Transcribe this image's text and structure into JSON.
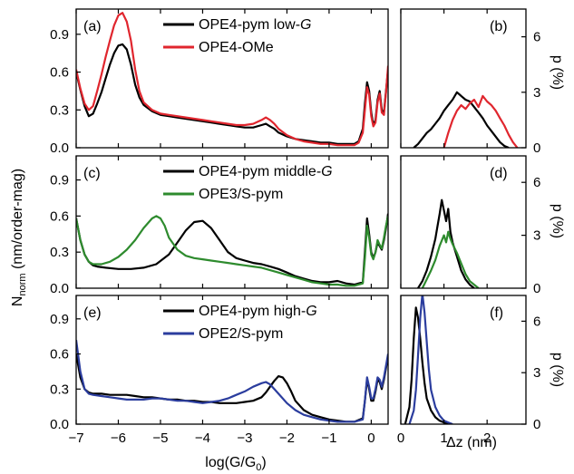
{
  "figure": {
    "ylabel_left_main": "N",
    "ylabel_left_sub": "norm",
    "ylabel_left_rest": " (nm/order-mag)",
    "xlabel_left_main": "log(G/G",
    "xlabel_left_sub": "0",
    "xlabel_left_end": ")",
    "xlabel_right": "Δz (nm)",
    "ylabel_right": "p (%)"
  },
  "chart_data": [
    {
      "id": "a",
      "panel_label": "(a)",
      "type": "line",
      "xlim": [
        -7,
        0.4
      ],
      "ylim": [
        0,
        1.1
      ],
      "xticks": [
        -7,
        -6,
        -5,
        -4,
        -3,
        -2,
        -1,
        0
      ],
      "yticks": [
        0.0,
        0.3,
        0.6,
        0.9
      ],
      "ytick_labels": [
        "0.0",
        "0.3",
        "0.6",
        "0.9"
      ],
      "legend_position": "top-right",
      "series": [
        {
          "legend_main": "OPE4-pym low-",
          "legend_italic": "G",
          "color": "#000000",
          "x": [
            -7.0,
            -6.9,
            -6.8,
            -6.7,
            -6.6,
            -6.5,
            -6.4,
            -6.3,
            -6.2,
            -6.1,
            -6.0,
            -5.9,
            -5.8,
            -5.7,
            -5.6,
            -5.5,
            -5.4,
            -5.2,
            -5.0,
            -4.8,
            -4.6,
            -4.4,
            -4.2,
            -4.0,
            -3.8,
            -3.6,
            -3.4,
            -3.2,
            -3.0,
            -2.8,
            -2.6,
            -2.5,
            -2.4,
            -2.3,
            -2.2,
            -2.0,
            -1.8,
            -1.6,
            -1.4,
            -1.2,
            -1.0,
            -0.8,
            -0.6,
            -0.4,
            -0.3,
            -0.2,
            -0.15,
            -0.1,
            -0.05,
            0.0,
            0.05,
            0.1,
            0.15,
            0.2,
            0.25,
            0.3,
            0.35,
            0.4
          ],
          "y": [
            0.6,
            0.46,
            0.33,
            0.25,
            0.27,
            0.35,
            0.44,
            0.55,
            0.66,
            0.75,
            0.81,
            0.82,
            0.78,
            0.66,
            0.5,
            0.4,
            0.34,
            0.29,
            0.26,
            0.25,
            0.24,
            0.23,
            0.22,
            0.21,
            0.2,
            0.19,
            0.18,
            0.17,
            0.16,
            0.16,
            0.18,
            0.19,
            0.17,
            0.15,
            0.12,
            0.09,
            0.07,
            0.06,
            0.05,
            0.04,
            0.04,
            0.03,
            0.03,
            0.03,
            0.05,
            0.15,
            0.35,
            0.52,
            0.45,
            0.28,
            0.18,
            0.22,
            0.38,
            0.45,
            0.3,
            0.28,
            0.45,
            0.62
          ]
        },
        {
          "legend_main": "OPE4-OMe",
          "legend_italic": "",
          "color": "#e0262e",
          "x": [
            -7.0,
            -6.9,
            -6.8,
            -6.7,
            -6.6,
            -6.5,
            -6.4,
            -6.3,
            -6.2,
            -6.1,
            -6.0,
            -5.9,
            -5.8,
            -5.7,
            -5.6,
            -5.5,
            -5.4,
            -5.2,
            -5.0,
            -4.8,
            -4.6,
            -4.4,
            -4.2,
            -4.0,
            -3.8,
            -3.6,
            -3.4,
            -3.2,
            -3.0,
            -2.8,
            -2.6,
            -2.5,
            -2.4,
            -2.3,
            -2.2,
            -2.0,
            -1.8,
            -1.6,
            -1.4,
            -1.2,
            -1.0,
            -0.8,
            -0.6,
            -0.4,
            -0.3,
            -0.2,
            -0.15,
            -0.1,
            -0.05,
            0.0,
            0.05,
            0.1,
            0.15,
            0.2,
            0.25,
            0.3,
            0.35,
            0.4
          ],
          "y": [
            0.62,
            0.47,
            0.35,
            0.3,
            0.33,
            0.45,
            0.58,
            0.72,
            0.85,
            0.97,
            1.05,
            1.07,
            1.0,
            0.85,
            0.62,
            0.45,
            0.36,
            0.3,
            0.27,
            0.26,
            0.25,
            0.24,
            0.23,
            0.22,
            0.21,
            0.2,
            0.19,
            0.18,
            0.18,
            0.19,
            0.22,
            0.24,
            0.22,
            0.19,
            0.15,
            0.1,
            0.07,
            0.05,
            0.04,
            0.03,
            0.03,
            0.02,
            0.02,
            0.02,
            0.04,
            0.12,
            0.3,
            0.48,
            0.42,
            0.25,
            0.17,
            0.2,
            0.36,
            0.43,
            0.28,
            0.26,
            0.44,
            0.65
          ]
        }
      ]
    },
    {
      "id": "b",
      "panel_label": "(b)",
      "type": "line",
      "xlim": [
        0,
        2.9
      ],
      "ylim": [
        0,
        7.5
      ],
      "xticks": [
        0,
        1,
        2
      ],
      "yticks": [
        0,
        3,
        6
      ],
      "ytick_labels": [
        "0",
        "3",
        "6"
      ],
      "series": [
        {
          "name": "",
          "color": "#000000",
          "x": [
            0.3,
            0.4,
            0.5,
            0.6,
            0.7,
            0.8,
            0.9,
            1.0,
            1.1,
            1.2,
            1.3,
            1.4,
            1.5,
            1.6,
            1.7,
            1.8,
            1.9,
            2.0,
            2.1,
            2.2,
            2.3,
            2.4,
            2.5
          ],
          "y": [
            0.0,
            0.2,
            0.5,
            0.8,
            1.0,
            1.3,
            1.6,
            2.0,
            2.3,
            2.6,
            3.0,
            2.8,
            2.6,
            2.5,
            2.2,
            1.9,
            1.6,
            1.2,
            0.9,
            0.6,
            0.3,
            0.1,
            0.0
          ]
        },
        {
          "name": "",
          "color": "#e0262e",
          "x": [
            1.0,
            1.1,
            1.2,
            1.3,
            1.4,
            1.5,
            1.6,
            1.7,
            1.8,
            1.9,
            2.0,
            2.1,
            2.2,
            2.3,
            2.4,
            2.5,
            2.6,
            2.7
          ],
          "y": [
            0.0,
            0.8,
            1.5,
            2.0,
            2.3,
            2.1,
            2.4,
            2.6,
            2.2,
            2.8,
            2.5,
            2.3,
            2.0,
            1.6,
            1.2,
            0.7,
            0.3,
            0.0
          ]
        }
      ]
    },
    {
      "id": "c",
      "panel_label": "(c)",
      "type": "line",
      "xlim": [
        -7,
        0.4
      ],
      "ylim": [
        0,
        1.1
      ],
      "xticks": [
        -7,
        -6,
        -5,
        -4,
        -3,
        -2,
        -1,
        0
      ],
      "yticks": [
        0.0,
        0.3,
        0.6,
        0.9
      ],
      "ytick_labels": [
        "0.0",
        "0.3",
        "0.6",
        "0.9"
      ],
      "legend_position": "top-right",
      "series": [
        {
          "legend_main": "OPE4-pym middle-",
          "legend_italic": "G",
          "color": "#000000",
          "x": [
            -7.0,
            -6.9,
            -6.8,
            -6.7,
            -6.6,
            -6.5,
            -6.3,
            -6.0,
            -5.7,
            -5.4,
            -5.1,
            -4.8,
            -4.6,
            -4.4,
            -4.2,
            -4.0,
            -3.8,
            -3.6,
            -3.4,
            -3.2,
            -3.0,
            -2.8,
            -2.6,
            -2.4,
            -2.2,
            -2.0,
            -1.8,
            -1.6,
            -1.4,
            -1.2,
            -1.0,
            -0.8,
            -0.6,
            -0.4,
            -0.2,
            -0.15,
            -0.1,
            -0.05,
            0.0,
            0.05,
            0.1,
            0.15,
            0.2,
            0.25,
            0.3,
            0.35,
            0.4
          ],
          "y": [
            0.58,
            0.4,
            0.28,
            0.22,
            0.19,
            0.18,
            0.17,
            0.16,
            0.16,
            0.17,
            0.2,
            0.28,
            0.38,
            0.48,
            0.55,
            0.56,
            0.5,
            0.4,
            0.3,
            0.25,
            0.23,
            0.21,
            0.2,
            0.18,
            0.16,
            0.13,
            0.1,
            0.08,
            0.06,
            0.05,
            0.05,
            0.06,
            0.04,
            0.03,
            0.05,
            0.3,
            0.58,
            0.45,
            0.3,
            0.25,
            0.3,
            0.38,
            0.35,
            0.32,
            0.4,
            0.5,
            0.62
          ]
        },
        {
          "legend_main": "OPE3/S-pym",
          "legend_italic": "",
          "color": "#2e8b2e",
          "x": [
            -7.0,
            -6.9,
            -6.8,
            -6.7,
            -6.6,
            -6.4,
            -6.2,
            -6.0,
            -5.8,
            -5.6,
            -5.4,
            -5.2,
            -5.1,
            -5.0,
            -4.9,
            -4.8,
            -4.6,
            -4.4,
            -4.2,
            -4.0,
            -3.8,
            -3.6,
            -3.4,
            -3.2,
            -3.0,
            -2.8,
            -2.6,
            -2.4,
            -2.2,
            -2.0,
            -1.8,
            -1.6,
            -1.4,
            -1.2,
            -1.0,
            -0.8,
            -0.6,
            -0.4,
            -0.2,
            -0.15,
            -0.1,
            -0.05,
            0.0,
            0.05,
            0.1,
            0.15,
            0.2,
            0.25,
            0.3,
            0.35,
            0.4
          ],
          "y": [
            0.58,
            0.4,
            0.28,
            0.22,
            0.2,
            0.2,
            0.22,
            0.26,
            0.32,
            0.4,
            0.5,
            0.58,
            0.6,
            0.58,
            0.52,
            0.42,
            0.32,
            0.27,
            0.25,
            0.24,
            0.23,
            0.22,
            0.21,
            0.2,
            0.19,
            0.18,
            0.17,
            0.15,
            0.13,
            0.11,
            0.09,
            0.07,
            0.05,
            0.04,
            0.03,
            0.03,
            0.02,
            0.02,
            0.04,
            0.25,
            0.52,
            0.42,
            0.28,
            0.24,
            0.3,
            0.4,
            0.36,
            0.33,
            0.42,
            0.52,
            0.6
          ]
        }
      ]
    },
    {
      "id": "d",
      "panel_label": "(d)",
      "type": "line",
      "xlim": [
        0,
        2.9
      ],
      "ylim": [
        0,
        7.5
      ],
      "xticks": [
        0,
        1,
        2
      ],
      "yticks": [
        0,
        3,
        6
      ],
      "ytick_labels": [
        "0",
        "3",
        "6"
      ],
      "series": [
        {
          "name": "",
          "color": "#000000",
          "x": [
            0.4,
            0.5,
            0.6,
            0.7,
            0.8,
            0.85,
            0.9,
            0.95,
            1.0,
            1.05,
            1.1,
            1.15,
            1.2,
            1.3,
            1.4,
            1.5,
            1.6,
            1.7
          ],
          "y": [
            0.0,
            0.4,
            1.0,
            1.8,
            2.8,
            3.5,
            4.2,
            5.0,
            4.4,
            3.8,
            4.5,
            3.2,
            2.6,
            1.8,
            1.0,
            0.5,
            0.2,
            0.0
          ]
        },
        {
          "name": "",
          "color": "#2e8b2e",
          "x": [
            0.5,
            0.6,
            0.7,
            0.8,
            0.9,
            1.0,
            1.05,
            1.1,
            1.15,
            1.2,
            1.3,
            1.4,
            1.5,
            1.6,
            1.7,
            1.8
          ],
          "y": [
            0.0,
            0.5,
            1.0,
            1.6,
            2.4,
            3.0,
            2.6,
            3.2,
            2.8,
            2.5,
            2.0,
            1.4,
            0.8,
            0.4,
            0.2,
            0.0
          ]
        }
      ]
    },
    {
      "id": "e",
      "panel_label": "(e)",
      "type": "line",
      "xlim": [
        -7,
        0.4
      ],
      "ylim": [
        0,
        1.1
      ],
      "xticks": [
        -7,
        -6,
        -5,
        -4,
        -3,
        -2,
        -1,
        0
      ],
      "yticks": [
        0.0,
        0.3,
        0.6,
        0.9
      ],
      "ytick_labels": [
        "0.0",
        "0.3",
        "0.6",
        "0.9"
      ],
      "legend_position": "top-right",
      "series": [
        {
          "legend_main": "OPE4-pym high-",
          "legend_italic": "G",
          "color": "#000000",
          "x": [
            -7.0,
            -6.9,
            -6.8,
            -6.7,
            -6.6,
            -6.4,
            -6.2,
            -6.0,
            -5.8,
            -5.6,
            -5.4,
            -5.2,
            -5.0,
            -4.8,
            -4.6,
            -4.4,
            -4.2,
            -4.0,
            -3.8,
            -3.6,
            -3.4,
            -3.2,
            -3.0,
            -2.8,
            -2.6,
            -2.5,
            -2.4,
            -2.3,
            -2.2,
            -2.1,
            -2.0,
            -1.9,
            -1.8,
            -1.6,
            -1.4,
            -1.2,
            -1.0,
            -0.8,
            -0.6,
            -0.4,
            -0.2,
            -0.15,
            -0.1,
            -0.05,
            0.0,
            0.05,
            0.1,
            0.15,
            0.2,
            0.25,
            0.3,
            0.35,
            0.4
          ],
          "y": [
            0.6,
            0.4,
            0.3,
            0.27,
            0.26,
            0.26,
            0.25,
            0.25,
            0.25,
            0.24,
            0.23,
            0.23,
            0.22,
            0.21,
            0.21,
            0.2,
            0.2,
            0.19,
            0.19,
            0.18,
            0.18,
            0.18,
            0.19,
            0.2,
            0.23,
            0.27,
            0.32,
            0.37,
            0.41,
            0.4,
            0.35,
            0.28,
            0.2,
            0.12,
            0.08,
            0.06,
            0.04,
            0.03,
            0.02,
            0.02,
            0.05,
            0.2,
            0.38,
            0.3,
            0.2,
            0.2,
            0.28,
            0.38,
            0.36,
            0.3,
            0.38,
            0.48,
            0.58
          ]
        },
        {
          "legend_main": "OPE2/S-pym",
          "legend_italic": "",
          "color": "#2b3d9e",
          "x": [
            -7.0,
            -6.9,
            -6.8,
            -6.7,
            -6.6,
            -6.4,
            -6.2,
            -6.0,
            -5.8,
            -5.6,
            -5.4,
            -5.2,
            -5.0,
            -4.8,
            -4.6,
            -4.4,
            -4.2,
            -4.0,
            -3.8,
            -3.6,
            -3.4,
            -3.2,
            -3.0,
            -2.8,
            -2.6,
            -2.5,
            -2.4,
            -2.3,
            -2.2,
            -2.1,
            -2.0,
            -1.8,
            -1.6,
            -1.4,
            -1.2,
            -1.0,
            -0.8,
            -0.6,
            -0.4,
            -0.2,
            -0.15,
            -0.1,
            -0.05,
            0.0,
            0.05,
            0.1,
            0.15,
            0.2,
            0.25,
            0.3,
            0.35,
            0.4
          ],
          "y": [
            0.72,
            0.45,
            0.3,
            0.26,
            0.25,
            0.24,
            0.23,
            0.22,
            0.21,
            0.21,
            0.21,
            0.22,
            0.22,
            0.21,
            0.2,
            0.2,
            0.19,
            0.18,
            0.19,
            0.2,
            0.22,
            0.25,
            0.28,
            0.32,
            0.35,
            0.36,
            0.34,
            0.3,
            0.26,
            0.22,
            0.18,
            0.12,
            0.08,
            0.06,
            0.04,
            0.03,
            0.02,
            0.02,
            0.02,
            0.04,
            0.2,
            0.4,
            0.32,
            0.22,
            0.22,
            0.3,
            0.4,
            0.38,
            0.32,
            0.4,
            0.5,
            0.6
          ]
        }
      ]
    },
    {
      "id": "f",
      "panel_label": "(f)",
      "type": "line",
      "xlim": [
        0,
        2.9
      ],
      "ylim": [
        0,
        7.5
      ],
      "xticks": [
        0,
        1,
        2
      ],
      "yticks": [
        0,
        3,
        6
      ],
      "ytick_labels": [
        "0",
        "3",
        "6"
      ],
      "series": [
        {
          "name": "",
          "color": "#000000",
          "x": [
            0.1,
            0.2,
            0.25,
            0.3,
            0.35,
            0.4,
            0.45,
            0.5,
            0.55,
            0.6,
            0.7,
            0.8,
            0.9,
            1.0,
            1.1
          ],
          "y": [
            0.0,
            1.0,
            2.6,
            5.0,
            6.8,
            6.2,
            5.0,
            3.6,
            2.4,
            1.5,
            0.8,
            0.4,
            0.2,
            0.1,
            0.0
          ]
        },
        {
          "name": "",
          "color": "#2b3d9e",
          "x": [
            0.2,
            0.3,
            0.35,
            0.4,
            0.45,
            0.5,
            0.55,
            0.6,
            0.65,
            0.7,
            0.8,
            0.9,
            1.0,
            1.1,
            1.2
          ],
          "y": [
            0.0,
            0.8,
            2.0,
            4.0,
            6.2,
            7.6,
            6.5,
            4.8,
            3.2,
            2.0,
            1.0,
            0.5,
            0.2,
            0.1,
            0.0
          ]
        }
      ]
    }
  ]
}
